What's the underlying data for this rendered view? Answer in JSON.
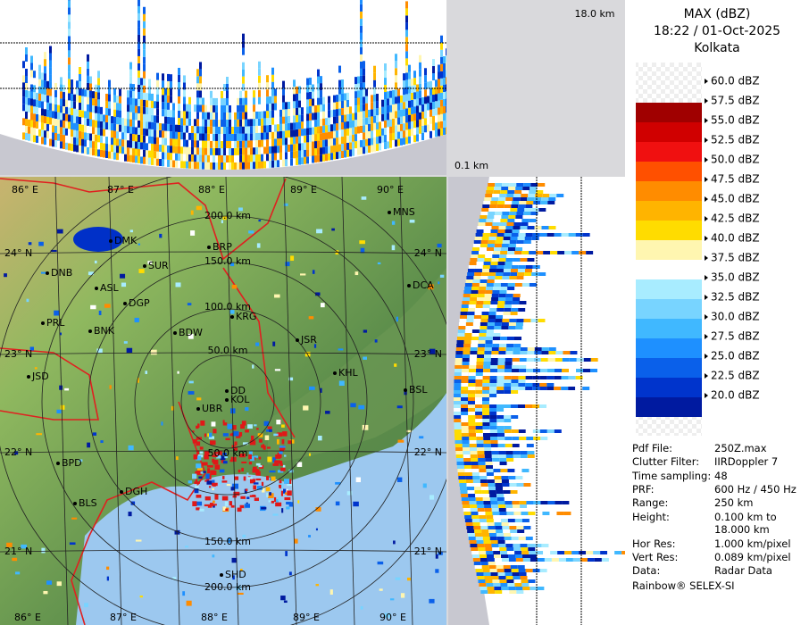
{
  "header": {
    "product": "MAX (dBZ)",
    "time": "18:22 / 01-Oct-2025",
    "station": "Kolkata"
  },
  "profile": {
    "max_height": "18.0 km",
    "min_height": "0.1 km"
  },
  "legend": {
    "labels": [
      "60.0 dBZ",
      "57.5 dBZ",
      "55.0 dBZ",
      "52.5 dBZ",
      "50.0 dBZ",
      "47.5 dBZ",
      "45.0 dBZ",
      "42.5 dBZ",
      "40.0 dBZ",
      "37.5 dBZ",
      "35.0 dBZ",
      "32.5 dBZ",
      "30.0 dBZ",
      "27.5 dBZ",
      "25.0 dBZ",
      "22.5 dBZ",
      "20.0 dBZ"
    ],
    "colors": [
      "#a00000",
      "#d00000",
      "#f01010",
      "#ff5000",
      "#ff8c00",
      "#ffb400",
      "#ffdc00",
      "#fff6b0",
      "#ffffff",
      "#a8ecff",
      "#78d4ff",
      "#40b8ff",
      "#1e90ff",
      "#0a60ea",
      "#0034cc",
      "#001aa0"
    ]
  },
  "map": {
    "lon_top": [
      "86° E",
      "87° E",
      "88° E",
      "89° E",
      "90° E"
    ],
    "lon_bottom": [
      "86° E",
      "87° E",
      "88° E",
      "89° E",
      "90° E"
    ],
    "lat_left": [
      "24° N",
      "23° N",
      "22° N",
      "21° N"
    ],
    "lat_right": [
      "24° N",
      "23° N",
      "22° N",
      "21° N"
    ],
    "ranges_north": [
      "200.0 km",
      "150.0 km",
      "100.0 km",
      "50.0 km"
    ],
    "ranges_south": [
      "50.0 km",
      "150.0 km",
      "200.0 km"
    ],
    "cities": [
      "MNS",
      "DMK",
      "BRP",
      "DNB",
      "SUR",
      "ASL",
      "DGP",
      "DCA",
      "PRL",
      "KRG",
      "BNK",
      "BDW",
      "JSR",
      "KHL",
      "JSD",
      "DD",
      "KOL",
      "UBR",
      "BSL",
      "BPD",
      "DGH",
      "BLS",
      "SHD"
    ]
  },
  "info": {
    "rows": [
      [
        "Pdf File:",
        "250Z.max"
      ],
      [
        "Clutter Filter:",
        "IIRDoppler 7"
      ],
      [
        "Time sampling:",
        "48"
      ],
      [
        "PRF:",
        "600 Hz / 450 Hz"
      ],
      [
        "Range:",
        "250 km"
      ],
      [
        "Height:",
        "0.100 km to 18.000 km"
      ],
      [
        "Hor Res:",
        "1.000 km/pixel"
      ],
      [
        "Vert Res:",
        "0.089 km/pixel"
      ],
      [
        "Data:",
        "Radar Data"
      ]
    ],
    "footer": "Rainbow® SELEX-SI"
  }
}
